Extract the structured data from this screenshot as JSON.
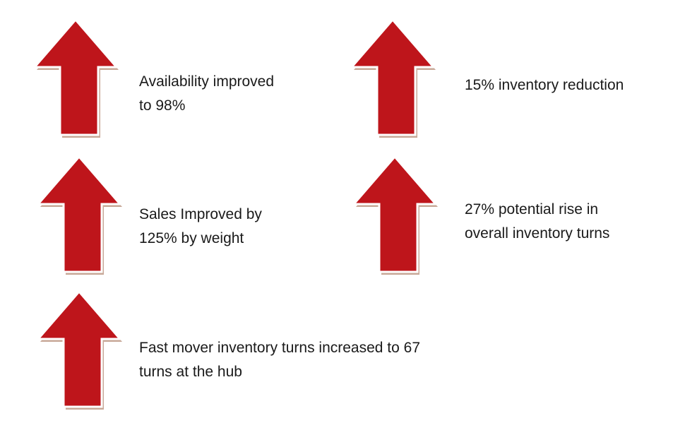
{
  "colors": {
    "arrow_fill": "#be151b",
    "arrow_shadow": "#c8a898",
    "arrow_outline": "#ffffff",
    "text": "#1a1a1a"
  },
  "items": [
    {
      "icon": "arrow-up-icon",
      "lines": [
        "Availability improved",
        "to 98%"
      ]
    },
    {
      "icon": "arrow-up-icon",
      "lines": [
        "15% inventory reduction"
      ]
    },
    {
      "icon": "arrow-up-icon",
      "lines": [
        "Sales Improved by",
        "125% by weight"
      ]
    },
    {
      "icon": "arrow-up-icon",
      "lines": [
        "27% potential rise in",
        "overall inventory turns"
      ]
    },
    {
      "icon": "arrow-up-icon",
      "lines": [
        "Fast mover inventory turns increased to 67",
        "turns at the hub"
      ]
    }
  ]
}
